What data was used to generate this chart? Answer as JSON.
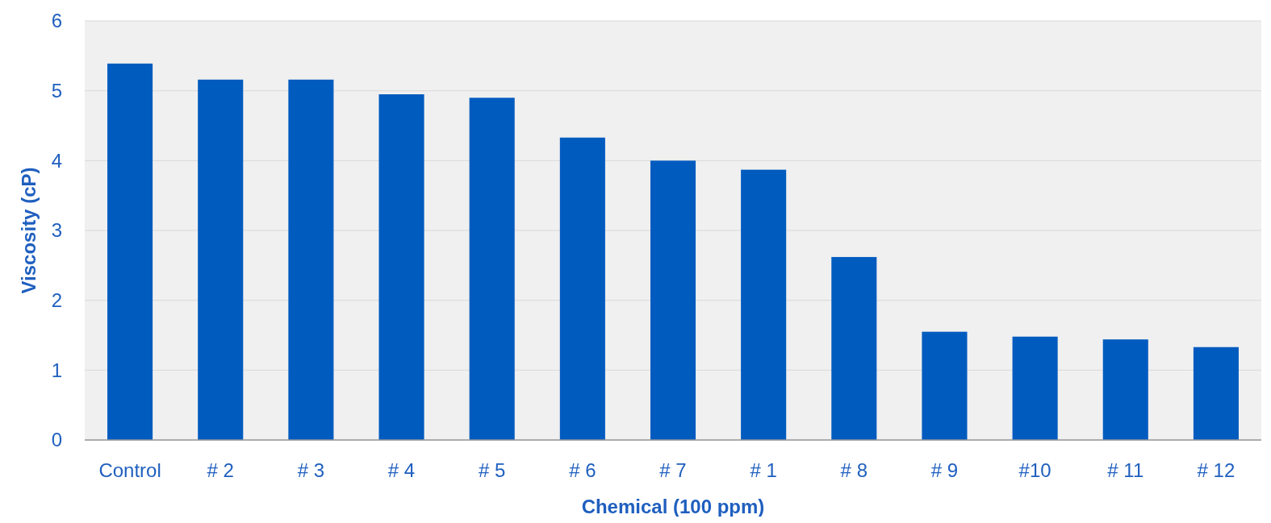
{
  "chart_data": {
    "type": "bar",
    "xlabel": "Chemical (100 ppm)",
    "ylabel": "Viscosity (cP)",
    "categories": [
      "Control",
      "# 2",
      "# 3",
      "# 4",
      "# 5",
      "# 6",
      "# 7",
      "# 1",
      "# 8",
      "# 9",
      "#10",
      "# 11",
      "# 12"
    ],
    "values": [
      5.39,
      5.16,
      5.16,
      4.95,
      4.9,
      4.33,
      4.0,
      3.87,
      2.62,
      1.55,
      1.48,
      1.44,
      1.33
    ],
    "color": "#005bbf",
    "ylim": [
      0,
      6
    ],
    "yticks": [
      0,
      1,
      2,
      3,
      4,
      5,
      6
    ],
    "grid": "y"
  }
}
